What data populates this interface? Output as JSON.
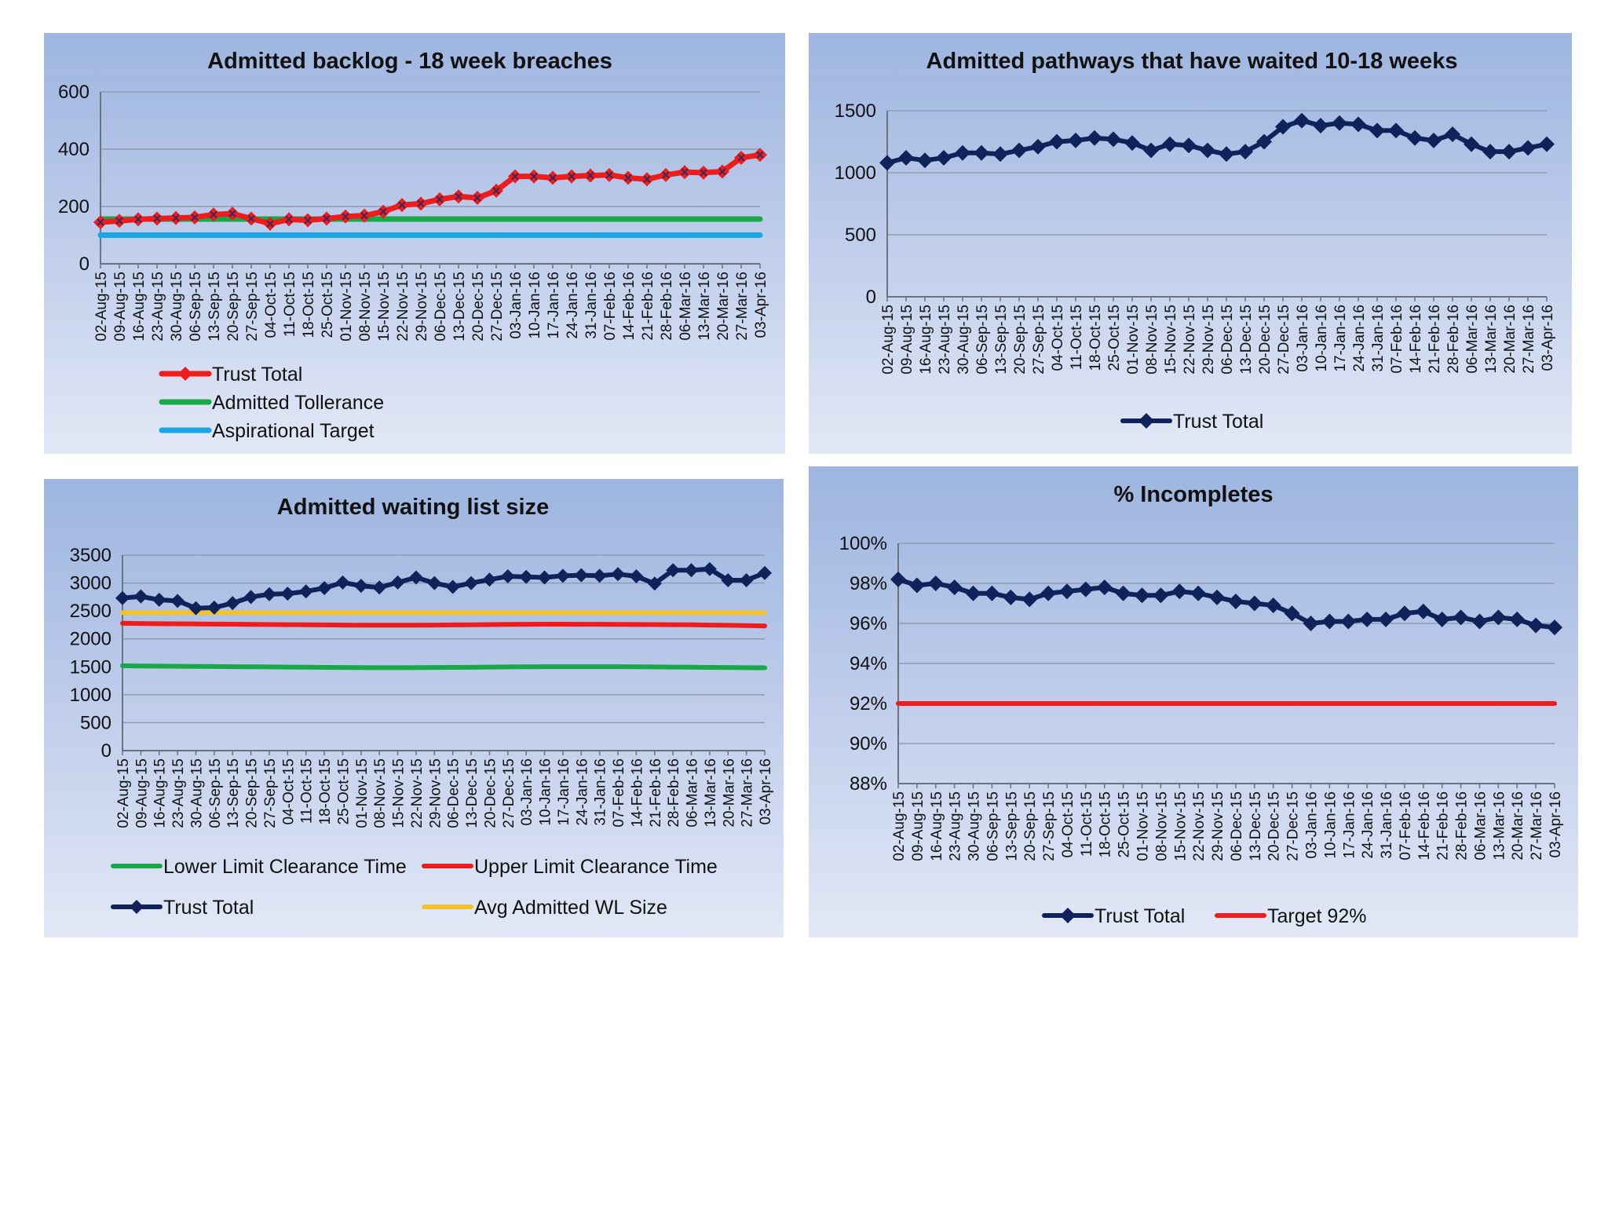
{
  "dates": [
    "02-Aug-15",
    "09-Aug-15",
    "16-Aug-15",
    "23-Aug-15",
    "30-Aug-15",
    "06-Sep-15",
    "13-Sep-15",
    "20-Sep-15",
    "27-Sep-15",
    "04-Oct-15",
    "11-Oct-15",
    "18-Oct-15",
    "25-Oct-15",
    "01-Nov-15",
    "08-Nov-15",
    "15-Nov-15",
    "22-Nov-15",
    "29-Nov-15",
    "06-Dec-15",
    "13-Dec-15",
    "20-Dec-15",
    "27-Dec-15",
    "03-Jan-16",
    "10-Jan-16",
    "17-Jan-16",
    "24-Jan-16",
    "31-Jan-16",
    "07-Feb-16",
    "14-Feb-16",
    "21-Feb-16",
    "28-Feb-16",
    "06-Mar-16",
    "13-Mar-16",
    "20-Mar-16",
    "27-Mar-16",
    "03-Apr-16"
  ],
  "colors": {
    "trust_total_red": "#ee1c1c",
    "trust_total_navy": "#0f2259",
    "green": "#19a848",
    "cyan": "#1aa7e6",
    "red": "#ee1c1c",
    "yellow": "#f5c12a",
    "gridline": "#8f9bb0",
    "axis": "#6b7280"
  },
  "chart_data": [
    {
      "id": "backlog",
      "type": "line",
      "title": "Admitted backlog - 18 week breaches",
      "xlabel": "",
      "ylabel": "",
      "ylim": [
        0,
        600
      ],
      "yticks": [
        0,
        200,
        400,
        600
      ],
      "ytick_labels": [
        "0",
        "200",
        "400",
        "600"
      ],
      "legend_position": "bottom-left",
      "series": [
        {
          "name": "Trust Total",
          "color": "#ee1c1c",
          "marker": "diamond",
          "values": [
            145,
            150,
            155,
            158,
            160,
            162,
            172,
            175,
            158,
            140,
            155,
            152,
            158,
            165,
            168,
            182,
            205,
            210,
            225,
            235,
            230,
            255,
            305,
            305,
            300,
            305,
            308,
            310,
            300,
            295,
            310,
            320,
            318,
            322,
            370,
            380
          ]
        },
        {
          "name": "Admitted Tollerance",
          "color": "#19a848",
          "marker": "none",
          "values": [
            156,
            156,
            156,
            156,
            156,
            156,
            156,
            156,
            156,
            156,
            156,
            156,
            156,
            156,
            156,
            156,
            156,
            156,
            156,
            156,
            156,
            156,
            156,
            156,
            156,
            156,
            156,
            156,
            156,
            156,
            156,
            156,
            156,
            156,
            156,
            156
          ]
        },
        {
          "name": "Aspirational Target",
          "color": "#1aa7e6",
          "marker": "none",
          "values": [
            100,
            100,
            100,
            100,
            100,
            100,
            100,
            100,
            100,
            100,
            100,
            100,
            100,
            100,
            100,
            100,
            100,
            100,
            100,
            100,
            100,
            100,
            100,
            100,
            100,
            100,
            100,
            100,
            100,
            100,
            100,
            100,
            100,
            100,
            100,
            100
          ]
        }
      ]
    },
    {
      "id": "pathways",
      "type": "line",
      "title": "Admitted pathways that have waited 10-18 weeks",
      "xlabel": "",
      "ylabel": "",
      "ylim": [
        0,
        1500
      ],
      "yticks": [
        0,
        500,
        1000,
        1500
      ],
      "ytick_labels": [
        "0",
        "500",
        "1000",
        "1500"
      ],
      "legend_position": "bottom-center",
      "series": [
        {
          "name": "Trust Total",
          "color": "#0f2259",
          "marker": "diamond",
          "values": [
            1080,
            1120,
            1100,
            1120,
            1160,
            1160,
            1150,
            1180,
            1210,
            1250,
            1260,
            1280,
            1270,
            1240,
            1180,
            1230,
            1220,
            1180,
            1150,
            1170,
            1250,
            1370,
            1420,
            1380,
            1400,
            1390,
            1340,
            1340,
            1280,
            1260,
            1310,
            1230,
            1170,
            1170,
            1200,
            1230
          ]
        }
      ]
    },
    {
      "id": "wlsize",
      "type": "line",
      "title": "Admitted waiting  list size",
      "xlabel": "",
      "ylabel": "",
      "ylim": [
        0,
        3500
      ],
      "yticks": [
        0,
        500,
        1000,
        1500,
        2000,
        2500,
        3000,
        3500
      ],
      "ytick_labels": [
        "0",
        "500",
        "1000",
        "1500",
        "2000",
        "2500",
        "3000",
        "3500"
      ],
      "legend_position": "bottom",
      "series": [
        {
          "name": "Lower Limit Clearance Time",
          "color": "#19a848",
          "marker": "none",
          "values": [
            1520,
            1515,
            1512,
            1510,
            1508,
            1505,
            1503,
            1500,
            1498,
            1495,
            1493,
            1490,
            1488,
            1486,
            1485,
            1485,
            1486,
            1488,
            1490,
            1492,
            1495,
            1498,
            1500,
            1502,
            1502,
            1503,
            1503,
            1502,
            1500,
            1498,
            1495,
            1493,
            1490,
            1488,
            1485,
            1483
          ]
        },
        {
          "name": "Upper Limit Clearance Time",
          "color": "#ee1c1c",
          "marker": "none",
          "values": [
            2280,
            2275,
            2272,
            2270,
            2268,
            2265,
            2263,
            2260,
            2258,
            2255,
            2253,
            2250,
            2248,
            2246,
            2245,
            2245,
            2246,
            2248,
            2250,
            2253,
            2256,
            2260,
            2262,
            2263,
            2263,
            2262,
            2261,
            2260,
            2258,
            2256,
            2254,
            2252,
            2248,
            2243,
            2238,
            2232
          ]
        },
        {
          "name": "Trust Total",
          "color": "#0f2259",
          "marker": "diamond",
          "values": [
            2730,
            2760,
            2700,
            2680,
            2550,
            2560,
            2640,
            2750,
            2800,
            2810,
            2850,
            2910,
            3010,
            2950,
            2920,
            3010,
            3100,
            3000,
            2930,
            3000,
            3060,
            3120,
            3110,
            3100,
            3130,
            3140,
            3130,
            3160,
            3120,
            2990,
            3230,
            3230,
            3250,
            3050,
            3050,
            3180
          ]
        },
        {
          "name": "Avg Admitted WL Size",
          "color": "#f5c12a",
          "marker": "none",
          "values": [
            2470,
            2470,
            2470,
            2470,
            2470,
            2470,
            2470,
            2470,
            2470,
            2470,
            2470,
            2470,
            2470,
            2470,
            2470,
            2470,
            2470,
            2470,
            2470,
            2470,
            2470,
            2470,
            2470,
            2470,
            2470,
            2470,
            2470,
            2470,
            2470,
            2470,
            2470,
            2470,
            2470,
            2470,
            2470,
            2470
          ]
        }
      ]
    },
    {
      "id": "incompletes",
      "type": "line",
      "title": "% Incompletes",
      "xlabel": "",
      "ylabel": "",
      "ylim": [
        88,
        100
      ],
      "yticks": [
        88,
        90,
        92,
        94,
        96,
        98,
        100
      ],
      "ytick_labels": [
        "88%",
        "90%",
        "92%",
        "94%",
        "96%",
        "98%",
        "100%"
      ],
      "legend_position": "bottom-center",
      "series": [
        {
          "name": "Trust Total",
          "color": "#0f2259",
          "marker": "diamond",
          "values": [
            98.2,
            97.9,
            98.0,
            97.8,
            97.5,
            97.5,
            97.3,
            97.2,
            97.5,
            97.6,
            97.7,
            97.8,
            97.5,
            97.4,
            97.4,
            97.6,
            97.5,
            97.3,
            97.1,
            97.0,
            96.9,
            96.5,
            96.0,
            96.1,
            96.1,
            96.2,
            96.2,
            96.5,
            96.6,
            96.2,
            96.3,
            96.1,
            96.3,
            96.2,
            95.9,
            95.8
          ]
        },
        {
          "name": "Target 92%",
          "color": "#ee1c1c",
          "marker": "none",
          "values": [
            92,
            92,
            92,
            92,
            92,
            92,
            92,
            92,
            92,
            92,
            92,
            92,
            92,
            92,
            92,
            92,
            92,
            92,
            92,
            92,
            92,
            92,
            92,
            92,
            92,
            92,
            92,
            92,
            92,
            92,
            92,
            92,
            92,
            92,
            92,
            92
          ]
        }
      ]
    }
  ]
}
